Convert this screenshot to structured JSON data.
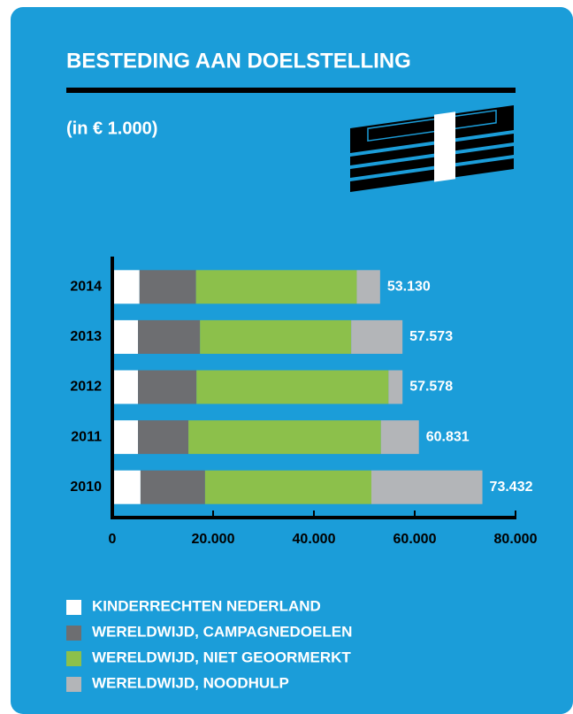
{
  "chart_data": {
    "type": "stacked_barh",
    "title": "BESTEDING AAN DOELSTELLING",
    "subtitle": "(in € 1.000)",
    "categories": [
      "2014",
      "2013",
      "2012",
      "2011",
      "2010"
    ],
    "series": [
      {
        "name": "KINDERRECHTEN NEDERLAND",
        "color": "#ffffff",
        "values": [
          5400,
          5100,
          5100,
          5100,
          5600
        ]
      },
      {
        "name": "WERELDWIJD, CAMPAGNEDOELEN",
        "color": "#6d6e71",
        "values": [
          11200,
          12300,
          11600,
          10000,
          12800
        ]
      },
      {
        "name": "WERELDWIJD, NIET GEOORMERKT",
        "color": "#8cc04b",
        "values": [
          31900,
          30000,
          38100,
          38200,
          33000
        ]
      },
      {
        "name": "WERELDWIJD, NOODHULP",
        "color": "#b3b5b8",
        "values": [
          4630,
          10173,
          2778,
          7531,
          22032
        ]
      }
    ],
    "totals": {
      "values": [
        53130,
        57573,
        57578,
        60831,
        73432
      ],
      "value_labels": [
        "53.130",
        "57.573",
        "57.578",
        "60.831",
        "73.432"
      ]
    },
    "xlim": [
      0,
      80000
    ],
    "xticks": [
      0,
      {
        "value": 20000,
        "label": "20.000"
      },
      {
        "value": 40000,
        "label": "40.000"
      },
      {
        "value": 60000,
        "label": "60.000"
      },
      {
        "value": 80000,
        "label": "80.000"
      }
    ],
    "legend": "bottom-left"
  }
}
